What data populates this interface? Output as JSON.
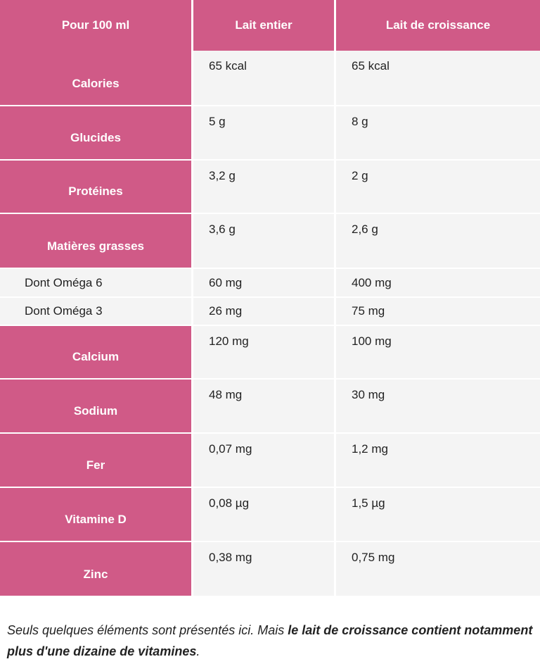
{
  "table": {
    "header": [
      "Pour 100 ml",
      "Lait entier",
      "Lait de croissance"
    ],
    "rows": [
      [
        "Calories",
        "65 kcal",
        "65 kcal"
      ],
      [
        "Glucides",
        "5 g",
        "8 g"
      ],
      [
        "Protéines",
        "3,2 g",
        "2 g"
      ],
      [
        "Matières grasses",
        "3,6 g",
        "2,6 g"
      ],
      [
        "Dont Oméga 6",
        "60 mg",
        "400 mg"
      ],
      [
        "Dont Oméga 3",
        "26 mg",
        "75 mg"
      ],
      [
        "Calcium",
        "120 mg",
        "100 mg"
      ],
      [
        "Sodium",
        "48 mg",
        "30 mg"
      ],
      [
        "Fer",
        "0,07 mg",
        "1,2 mg"
      ],
      [
        "Vitamine D",
        "0,08 µg",
        "1,5 µg"
      ],
      [
        "Zinc",
        "0,38 mg",
        "0,75 mg"
      ]
    ]
  },
  "footnote": {
    "parts": [
      "Seuls quelques éléments sont présentés ici. Mais ",
      "le lait de croissance contient notamment plus d'une dizaine de vitamines",
      "."
    ]
  }
}
